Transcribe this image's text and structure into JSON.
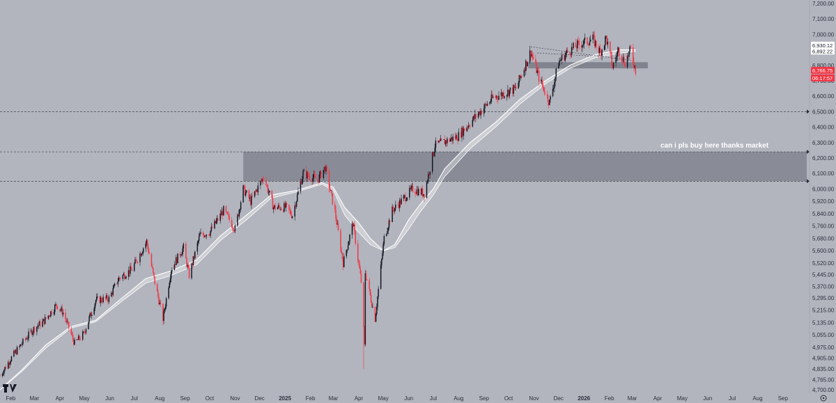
{
  "chart_data": {
    "type": "candlestick",
    "title": "",
    "ylim": [
      4700,
      7200
    ],
    "y_ticks": [
      "7,200.00",
      "7,100.00",
      "7,000.00",
      "6,800.00",
      "6,700.00",
      "6,600.00",
      "6,500.00",
      "6,400.00",
      "6,300.00",
      "6,200.00",
      "6,100.00",
      "6,000.00",
      "5,920.00",
      "5,840.00",
      "5,760.00",
      "5,680.00",
      "5,600.00",
      "5,520.00",
      "5,445.00",
      "5,370.00",
      "5,295.00",
      "5,215.00",
      "5,135.00",
      "5,055.00",
      "4,975.00",
      "4,905.00",
      "4,835.00",
      "4,765.00",
      "4,700.00"
    ],
    "x_ticks": [
      {
        "label": "Feb",
        "date": "2024-02-01"
      },
      {
        "label": "Mar",
        "date": "2024-03-01"
      },
      {
        "label": "Apr",
        "date": "2024-04-01"
      },
      {
        "label": "May",
        "date": "2024-05-01"
      },
      {
        "label": "Jun",
        "date": "2024-06-01"
      },
      {
        "label": "Jul",
        "date": "2024-07-01"
      },
      {
        "label": "Aug",
        "date": "2024-08-01"
      },
      {
        "label": "Sep",
        "date": "2024-09-01"
      },
      {
        "label": "Oct",
        "date": "2024-10-01"
      },
      {
        "label": "Nov",
        "date": "2024-11-01"
      },
      {
        "label": "Dec",
        "date": "2024-12-01"
      },
      {
        "label": "2025",
        "date": "2025-01-01",
        "bold": true
      },
      {
        "label": "Feb",
        "date": "2025-02-01"
      },
      {
        "label": "Mar",
        "date": "2025-03-01"
      },
      {
        "label": "Apr",
        "date": "2025-04-01"
      },
      {
        "label": "May",
        "date": "2025-05-01"
      },
      {
        "label": "Jun",
        "date": "2025-06-01"
      },
      {
        "label": "Jul",
        "date": "2025-07-01"
      },
      {
        "label": "Aug",
        "date": "2025-08-01"
      },
      {
        "label": "Sep",
        "date": "2025-09-01"
      },
      {
        "label": "Oct",
        "date": "2025-10-01"
      },
      {
        "label": "Nov",
        "date": "2025-11-01"
      },
      {
        "label": "Dec",
        "date": "2025-12-01"
      },
      {
        "label": "2026",
        "date": "2026-01-01",
        "bold": true
      },
      {
        "label": "Feb",
        "date": "2026-02-01"
      },
      {
        "label": "Mar",
        "date": "2026-03-01"
      },
      {
        "label": "Apr",
        "date": "2026-04-01"
      },
      {
        "label": "May",
        "date": "2026-05-01"
      },
      {
        "label": "Jun",
        "date": "2026-06-01"
      },
      {
        "label": "Jul",
        "date": "2026-07-01"
      },
      {
        "label": "Aug",
        "date": "2026-08-01"
      },
      {
        "label": "Sep",
        "date": "2026-09-01"
      }
    ],
    "price_path": [
      [
        "2024-01-19",
        4790
      ],
      [
        "2024-02-01",
        4900
      ],
      [
        "2024-02-15",
        5000
      ],
      [
        "2024-03-01",
        5100
      ],
      [
        "2024-03-12",
        5140
      ],
      [
        "2024-03-28",
        5250
      ],
      [
        "2024-04-05",
        5200
      ],
      [
        "2024-04-19",
        5000
      ],
      [
        "2024-04-30",
        5060
      ],
      [
        "2024-05-15",
        5280
      ],
      [
        "2024-05-31",
        5290
      ],
      [
        "2024-06-12",
        5420
      ],
      [
        "2024-06-28",
        5480
      ],
      [
        "2024-07-16",
        5660
      ],
      [
        "2024-07-25",
        5420
      ],
      [
        "2024-08-05",
        5160
      ],
      [
        "2024-08-15",
        5480
      ],
      [
        "2024-08-30",
        5620
      ],
      [
        "2024-09-06",
        5440
      ],
      [
        "2024-09-19",
        5700
      ],
      [
        "2024-10-01",
        5720
      ],
      [
        "2024-10-18",
        5860
      ],
      [
        "2024-11-01",
        5740
      ],
      [
        "2024-11-11",
        6000
      ],
      [
        "2024-11-20",
        5920
      ],
      [
        "2024-12-06",
        6080
      ],
      [
        "2024-12-18",
        5880
      ],
      [
        "2025-01-02",
        5880
      ],
      [
        "2025-01-10",
        5830
      ],
      [
        "2025-01-23",
        6100
      ],
      [
        "2025-02-10",
        6060
      ],
      [
        "2025-02-19",
        6140
      ],
      [
        "2025-03-03",
        5850
      ],
      [
        "2025-03-13",
        5520
      ],
      [
        "2025-03-25",
        5780
      ],
      [
        "2025-04-04",
        5400
      ],
      [
        "2025-04-08",
        4980
      ],
      [
        "2025-04-09",
        5460
      ],
      [
        "2025-04-21",
        5160
      ],
      [
        "2025-05-02",
        5680
      ],
      [
        "2025-05-12",
        5860
      ],
      [
        "2025-06-06",
        6000
      ],
      [
        "2025-06-20",
        5970
      ],
      [
        "2025-07-03",
        6280
      ],
      [
        "2025-07-31",
        6340
      ],
      [
        "2025-08-22",
        6470
      ],
      [
        "2025-09-12",
        6590
      ],
      [
        "2025-10-10",
        6650
      ],
      [
        "2025-10-28",
        6890
      ],
      [
        "2025-11-07",
        6720
      ],
      [
        "2025-11-20",
        6560
      ],
      [
        "2025-12-01",
        6820
      ],
      [
        "2025-12-11",
        6880
      ],
      [
        "2025-12-24",
        6930
      ],
      [
        "2026-01-12",
        6970
      ],
      [
        "2026-01-21",
        6880
      ],
      [
        "2026-01-28",
        6980
      ],
      [
        "2026-02-05",
        6790
      ],
      [
        "2026-02-12",
        6900
      ],
      [
        "2026-02-20",
        6820
      ],
      [
        "2026-02-27",
        6900
      ],
      [
        "2026-03-05",
        6770
      ]
    ],
    "lows": [
      [
        "2025-04-07",
        4835
      ],
      [
        "2024-08-05",
        5120
      ],
      [
        "2025-11-20",
        6540
      ]
    ],
    "moving_average_fast": [
      [
        "2024-01-19",
        4700
      ],
      [
        "2024-02-15",
        4830
      ],
      [
        "2024-03-15",
        4990
      ],
      [
        "2024-04-15",
        5110
      ],
      [
        "2024-05-15",
        5150
      ],
      [
        "2024-06-15",
        5290
      ],
      [
        "2024-07-15",
        5420
      ],
      [
        "2024-08-15",
        5470
      ],
      [
        "2024-09-15",
        5540
      ],
      [
        "2024-10-15",
        5700
      ],
      [
        "2024-11-15",
        5830
      ],
      [
        "2024-12-15",
        5960
      ],
      [
        "2025-01-15",
        5990
      ],
      [
        "2025-02-15",
        6040
      ],
      [
        "2025-03-01",
        6010
      ],
      [
        "2025-03-15",
        5880
      ],
      [
        "2025-04-01",
        5780
      ],
      [
        "2025-04-15",
        5680
      ],
      [
        "2025-05-01",
        5600
      ],
      [
        "2025-05-15",
        5640
      ],
      [
        "2025-06-01",
        5800
      ],
      [
        "2025-06-15",
        5900
      ],
      [
        "2025-07-01",
        6000
      ],
      [
        "2025-07-15",
        6130
      ],
      [
        "2025-08-15",
        6300
      ],
      [
        "2025-09-15",
        6430
      ],
      [
        "2025-10-15",
        6580
      ],
      [
        "2025-11-15",
        6700
      ],
      [
        "2025-12-15",
        6800
      ],
      [
        "2026-01-15",
        6870
      ],
      [
        "2026-02-15",
        6900
      ],
      [
        "2026-03-05",
        6900
      ]
    ],
    "moving_average_slow": [
      [
        "2024-01-19",
        4700
      ],
      [
        "2024-02-15",
        4820
      ],
      [
        "2024-03-15",
        4970
      ],
      [
        "2024-04-15",
        5100
      ],
      [
        "2024-05-15",
        5140
      ],
      [
        "2024-06-15",
        5270
      ],
      [
        "2024-07-15",
        5390
      ],
      [
        "2024-08-15",
        5440
      ],
      [
        "2024-09-15",
        5510
      ],
      [
        "2024-10-15",
        5670
      ],
      [
        "2024-11-15",
        5800
      ],
      [
        "2024-12-15",
        5940
      ],
      [
        "2025-01-15",
        5980
      ],
      [
        "2025-02-15",
        6030
      ],
      [
        "2025-03-01",
        5990
      ],
      [
        "2025-03-15",
        5830
      ],
      [
        "2025-04-01",
        5720
      ],
      [
        "2025-04-15",
        5640
      ],
      [
        "2025-05-01",
        5600
      ],
      [
        "2025-05-15",
        5620
      ],
      [
        "2025-06-01",
        5740
      ],
      [
        "2025-06-15",
        5850
      ],
      [
        "2025-07-01",
        5960
      ],
      [
        "2025-07-15",
        6080
      ],
      [
        "2025-08-15",
        6260
      ],
      [
        "2025-09-15",
        6400
      ],
      [
        "2025-10-15",
        6550
      ],
      [
        "2025-11-15",
        6680
      ],
      [
        "2025-12-15",
        6780
      ],
      [
        "2026-01-15",
        6850
      ],
      [
        "2026-02-15",
        6880
      ],
      [
        "2026-03-05",
        6890
      ]
    ],
    "zone": {
      "start": "2024-11-11",
      "end": "2026-09-30",
      "top": 6240,
      "bottom": 6050,
      "label": "can i pls buy here thanks market"
    },
    "recent_zone": {
      "start": "2025-10-25",
      "end": "2026-03-20",
      "top": 6820,
      "bottom": 6780
    },
    "dashed_levels": [
      6500,
      6240,
      6050
    ],
    "trendlines": [
      {
        "from": [
          "2025-10-28",
          6920
        ],
        "to": [
          "2026-03-01",
          6830
        ]
      },
      {
        "from": [
          "2025-11-05",
          6880
        ],
        "to": [
          "2026-01-10",
          6860
        ]
      }
    ],
    "price_tags": [
      {
        "text": "6,930.12",
        "value": 6930.12,
        "bg": "#ffffff",
        "fg": "#131722"
      },
      {
        "text": "6,892.22",
        "value": 6892.22,
        "bg": "#ffffff",
        "fg": "#131722"
      },
      {
        "text": "6,766.75",
        "value": 6766.75,
        "bg": "#f23645",
        "fg": "#ffffff"
      },
      {
        "text": "06:17:57",
        "value": 6718,
        "bg": "#f23645",
        "fg": "#ffffff"
      }
    ],
    "colors": {
      "background": "#b2b5be",
      "up": "#131722",
      "down": "#f23645",
      "ma": "#ffffff",
      "zone": "#787b86"
    }
  }
}
